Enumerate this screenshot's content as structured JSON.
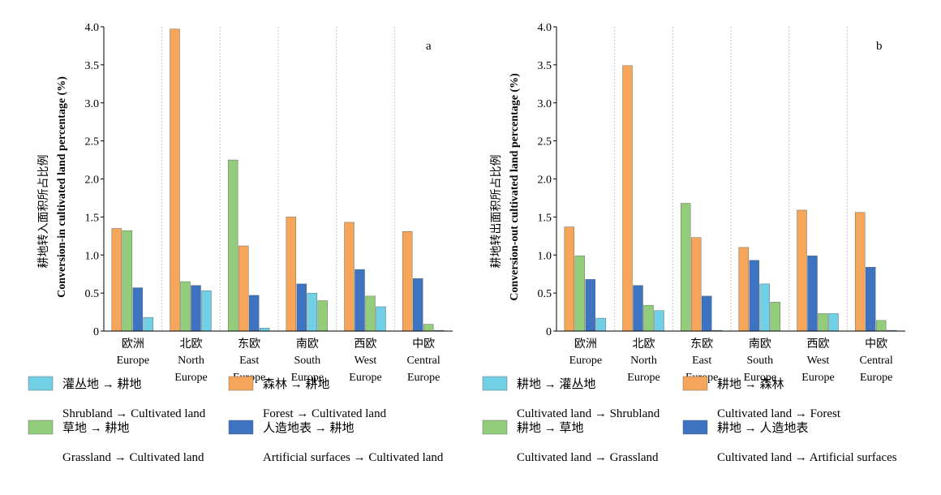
{
  "chart_data": [
    {
      "type": "bar",
      "panel_letter": "a",
      "ylabel_cn": "耕地转入面积所占比例",
      "ylabel_en": "Conversion-in cultivated land percentage (%)",
      "ylim": [
        0,
        4.0
      ],
      "yticks": [
        "0",
        "0.5",
        "1.0",
        "1.5",
        "2.0",
        "2.5",
        "3.0",
        "3.5",
        "4.0"
      ],
      "grid": "vertical dashed separators between regions",
      "categories_cn": [
        "欧洲",
        "北欧",
        "东欧",
        "南欧",
        "西欧",
        "中欧"
      ],
      "categories_en": [
        [
          "Europe"
        ],
        [
          "North",
          "Europe"
        ],
        [
          "East",
          "Europe"
        ],
        [
          "South",
          "Europe"
        ],
        [
          "West",
          "Europe"
        ],
        [
          "Central",
          "Europe"
        ]
      ],
      "series": [
        {
          "name_cn": "森林 → 耕地",
          "name_en": "Forest → Cultivated land",
          "color": "#f5a65b",
          "values": [
            1.35,
            3.97,
            1.12,
            1.5,
            1.43,
            1.31
          ]
        },
        {
          "name_cn": "草地 → 耕地",
          "name_en": "Grassland → Cultivated land",
          "color": "#93cc7a",
          "values": [
            1.32,
            0.65,
            2.25,
            0.4,
            0.46,
            0.09
          ]
        },
        {
          "name_cn": "人造地表 → 耕地",
          "name_en": "Artificial surfaces → Cultivated land",
          "color": "#3d73c1",
          "values": [
            0.57,
            0.6,
            0.47,
            0.62,
            0.81,
            0.69
          ]
        },
        {
          "name_cn": "灌丛地 → 耕地",
          "name_en": "Shrubland → Cultivated land",
          "color": "#72d0e6",
          "values": [
            0.18,
            0.53,
            0.04,
            0.5,
            0.32,
            0.01
          ]
        }
      ],
      "bar_order": [
        [
          0,
          1,
          2,
          3
        ],
        [
          0,
          1,
          2,
          3
        ],
        [
          1,
          0,
          2,
          3
        ],
        [
          0,
          2,
          3,
          1
        ],
        [
          0,
          2,
          1,
          3
        ],
        [
          0,
          2,
          1,
          3
        ]
      ],
      "legend": [
        {
          "cn": "灌丛地 → 耕地",
          "en": "Shrubland → Cultivated land",
          "color": "#72d0e6"
        },
        {
          "cn": "森林 → 耕地",
          "en": "Forest → Cultivated land",
          "color": "#f5a65b"
        },
        {
          "cn": "草地 → 耕地",
          "en": "Grassland → Cultivated land",
          "color": "#93cc7a"
        },
        {
          "cn": "人造地表 → 耕地",
          "en": "Artificial surfaces → Cultivated land",
          "color": "#3d73c1"
        }
      ]
    },
    {
      "type": "bar",
      "panel_letter": "b",
      "ylabel_cn": "耕地转出面积所占比例",
      "ylabel_en": "Conversion-out cultivated land percentage (%)",
      "ylim": [
        0,
        4.0
      ],
      "yticks": [
        "0",
        "0.5",
        "1.0",
        "1.5",
        "2.0",
        "2.5",
        "3.0",
        "3.5",
        "4.0"
      ],
      "grid": "vertical dashed separators between regions",
      "categories_cn": [
        "欧洲",
        "北欧",
        "东欧",
        "南欧",
        "西欧",
        "中欧"
      ],
      "categories_en": [
        [
          "Europe"
        ],
        [
          "North",
          "Europe"
        ],
        [
          "East",
          "Europe"
        ],
        [
          "South",
          "Europe"
        ],
        [
          "West",
          "Europe"
        ],
        [
          "Central",
          "Europe"
        ]
      ],
      "series": [
        {
          "name_cn": "耕地 → 森林",
          "name_en": "Cultivated land → Forest",
          "color": "#f5a65b",
          "values": [
            1.37,
            3.49,
            1.23,
            1.1,
            1.59,
            1.56
          ]
        },
        {
          "name_cn": "耕地 → 草地",
          "name_en": "Cultivated land → Grassland",
          "color": "#93cc7a",
          "values": [
            0.99,
            0.34,
            1.68,
            0.38,
            0.23,
            0.14
          ]
        },
        {
          "name_cn": "耕地 → 人造地表",
          "name_en": "Cultivated land → Artificial surfaces",
          "color": "#3d73c1",
          "values": [
            0.68,
            0.6,
            0.46,
            0.93,
            0.99,
            0.84
          ]
        },
        {
          "name_cn": "耕地 → 灌丛地",
          "name_en": "Cultivated land → Shrubland",
          "color": "#72d0e6",
          "values": [
            0.17,
            0.27,
            0.01,
            0.62,
            0.23,
            0.01
          ]
        }
      ],
      "bar_order": [
        [
          0,
          1,
          2,
          3
        ],
        [
          0,
          2,
          1,
          3
        ],
        [
          1,
          0,
          2,
          3
        ],
        [
          0,
          2,
          3,
          1
        ],
        [
          0,
          2,
          1,
          3
        ],
        [
          0,
          2,
          1,
          3
        ]
      ],
      "legend": [
        {
          "cn": "耕地 → 灌丛地",
          "en": "Cultivated land → Shrubland",
          "color": "#72d0e6"
        },
        {
          "cn": "耕地 → 森林",
          "en": "Cultivated land → Forest",
          "color": "#f5a65b"
        },
        {
          "cn": "耕地 → 草地",
          "en": "Cultivated land → Grassland",
          "color": "#93cc7a"
        },
        {
          "cn": "耕地 → 人造地表",
          "en": "Cultivated land → Artificial surfaces",
          "color": "#3d73c1"
        }
      ]
    }
  ]
}
